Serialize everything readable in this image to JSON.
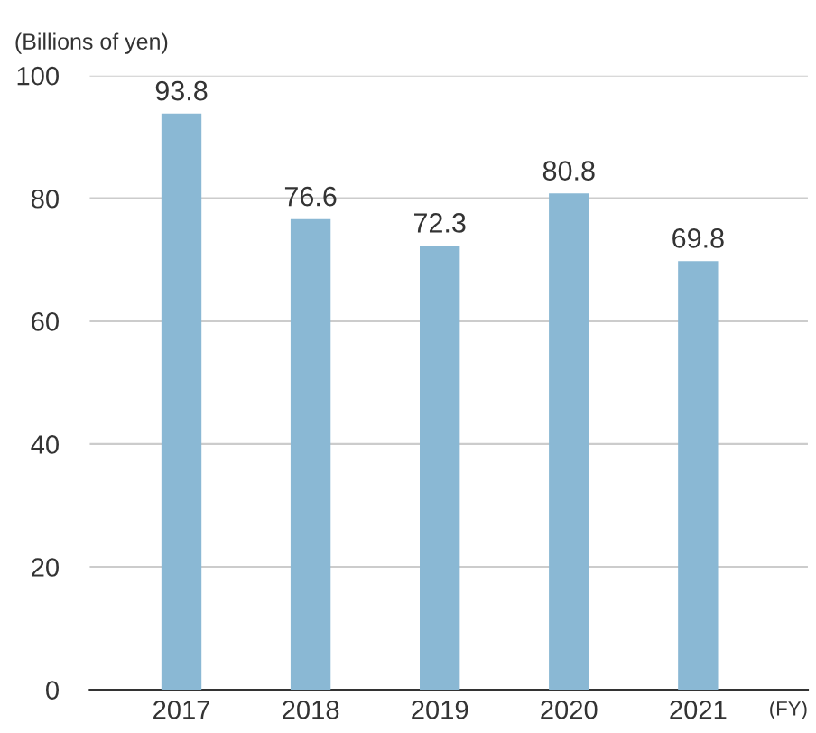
{
  "chart_data": {
    "type": "bar",
    "ylabel": "(Billions of yen)",
    "xlabel": "(FY)",
    "categories": [
      "2017",
      "2018",
      "2019",
      "2020",
      "2021"
    ],
    "values": [
      93.8,
      76.6,
      72.3,
      80.8,
      69.8
    ],
    "color": "#8ab8d4",
    "ylim": [
      0,
      100
    ],
    "yticks": [
      0,
      20,
      40,
      60,
      80,
      100
    ],
    "grid": "y",
    "data_labels": true
  }
}
